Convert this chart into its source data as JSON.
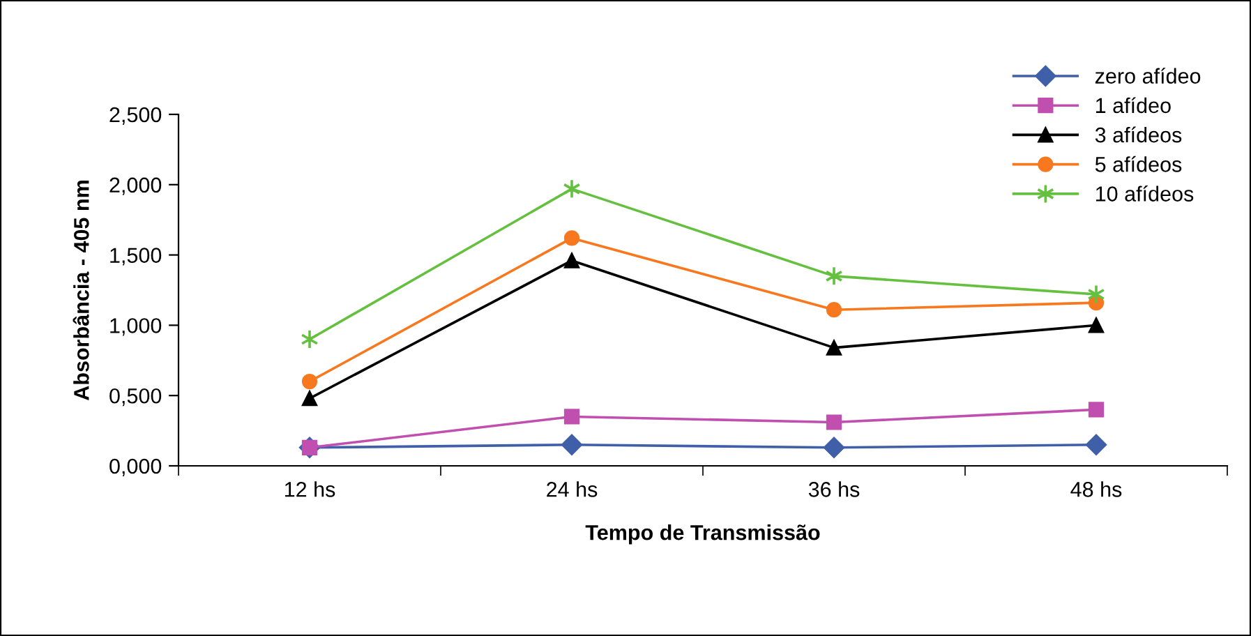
{
  "chart_data": {
    "type": "line",
    "xlabel": "Tempo de Transmissão",
    "ylabel": "Absorbância - 405 nm",
    "categories": [
      "12 hs",
      "24 hs",
      "36 hs",
      "48 hs"
    ],
    "ylim": [
      0,
      2.5
    ],
    "yticks": [
      {
        "value": 0,
        "label": "0,000"
      },
      {
        "value": 0.5,
        "label": "0,500"
      },
      {
        "value": 1,
        "label": "1,000"
      },
      {
        "value": 1.5,
        "label": "1,500"
      },
      {
        "value": 2,
        "label": "2,000"
      },
      {
        "value": 2.5,
        "label": "2,500"
      }
    ],
    "grid": false,
    "legend": "top right",
    "line_style": "solid",
    "series": [
      {
        "name": "zero afídeo",
        "color": "#3f5fa8",
        "marker": "diamond",
        "values": [
          0.13,
          0.15,
          0.13,
          0.15
        ]
      },
      {
        "name": "1 afídeo",
        "color": "#c04fb0",
        "marker": "square",
        "values": [
          0.13,
          0.35,
          0.31,
          0.4
        ]
      },
      {
        "name": "3 afídeos",
        "color": "#000000",
        "marker": "triangle",
        "values": [
          0.48,
          1.46,
          0.84,
          1.0
        ]
      },
      {
        "name": "5 afídeos",
        "color": "#f7781e",
        "marker": "circle",
        "values": [
          0.6,
          1.62,
          1.11,
          1.16
        ]
      },
      {
        "name": "10 afídeos",
        "color": "#66c040",
        "marker": "cross",
        "values": [
          0.9,
          1.97,
          1.35,
          1.22
        ]
      }
    ]
  }
}
